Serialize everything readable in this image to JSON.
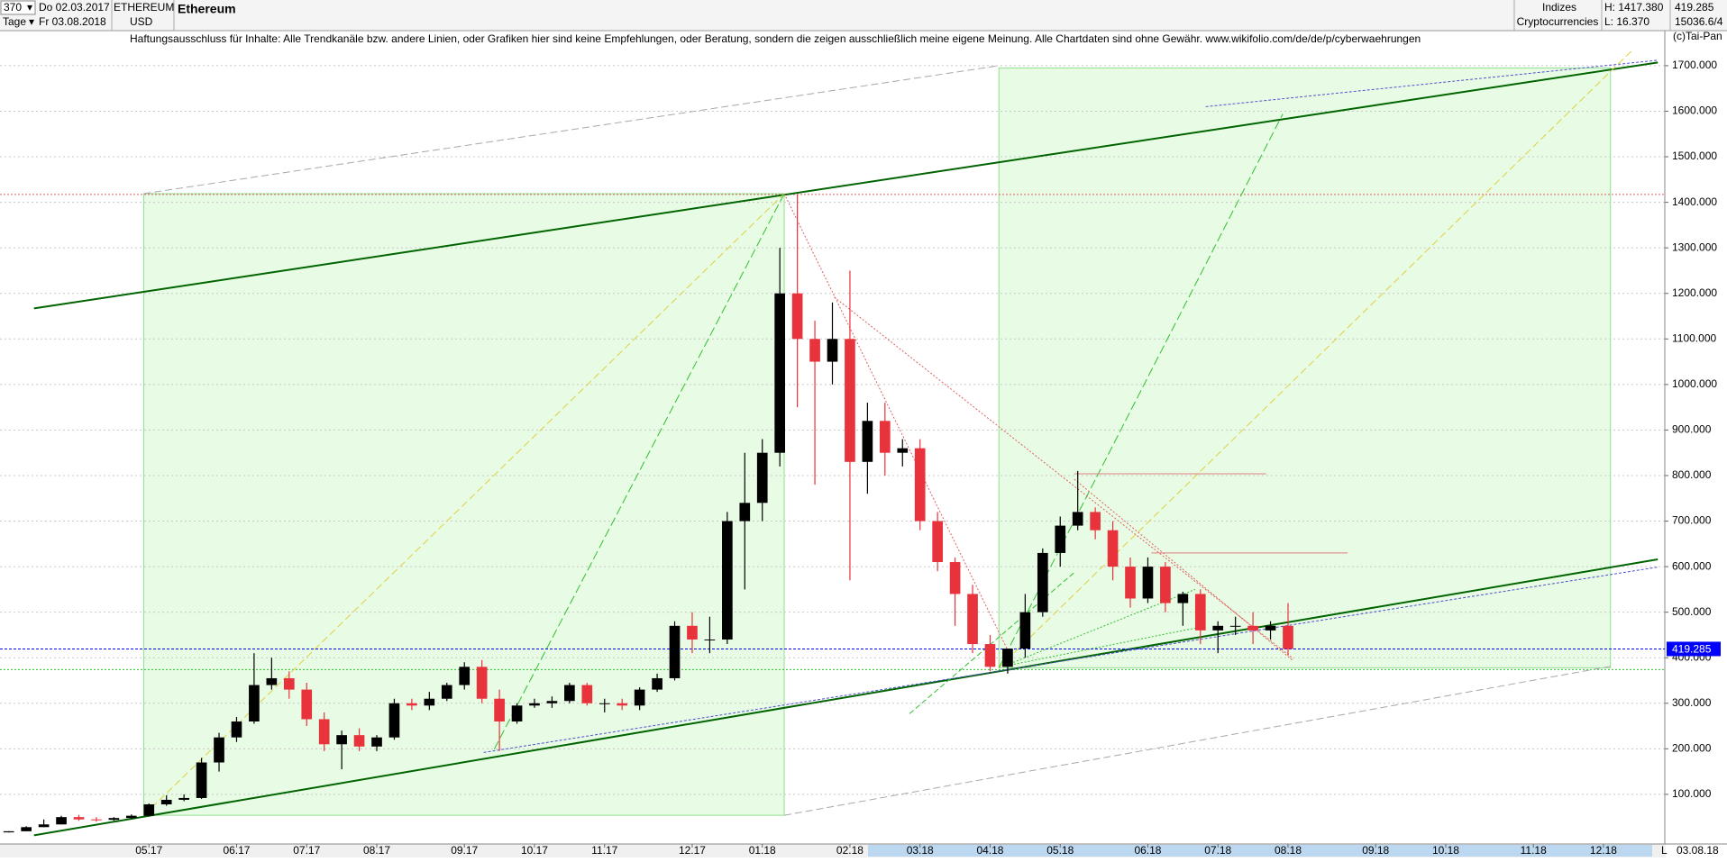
{
  "header": {
    "bars": "370",
    "period": "Tage",
    "start": "Do 02.03.2017",
    "end": "Fr 03.08.2018",
    "symbol": "ETHEREUM",
    "currency": "USD",
    "name": "Ethereum",
    "group": "Indizes",
    "subgroup": "Cryptocurrencies",
    "high": "H: 1417.380",
    "low": "L: 16.370",
    "code": "15036.6/4",
    "copyright": "(c)Tai-Pan",
    "disclaimer": "Haftungsausschluss für Inhalte: Alle Trendkanäle bzw. andere Linien, oder Grafiken hier sind keine Empfehlungen, oder Beratung, sondern die zeigen ausschließlich meine eigene Meinung. Alle Chartdaten sind ohne Gewähr.  www.wikifolio.com/de/de/p/cyberwaehrungen",
    "axis_flag": "L",
    "axis_date": "03.08.18"
  },
  "chart_data": {
    "type": "candlestick",
    "up_color": "#000000",
    "down_color": "#e8323c",
    "grid": true,
    "categories": [
      null,
      null,
      null,
      null,
      null,
      null,
      null,
      null,
      "05.17",
      null,
      null,
      null,
      null,
      "06.17",
      null,
      null,
      null,
      "07.17",
      null,
      null,
      null,
      "08.17",
      null,
      null,
      null,
      null,
      "09.17",
      null,
      null,
      null,
      "10.17",
      null,
      null,
      null,
      "11.17",
      null,
      null,
      null,
      null,
      "12.17",
      null,
      null,
      null,
      "01.18",
      null,
      null,
      null,
      null,
      "02.18",
      null,
      null,
      null,
      "03.18",
      null,
      null,
      null,
      "04.18",
      null,
      null,
      null,
      "05.18",
      null,
      null,
      null,
      null,
      "06.18",
      null,
      null,
      null,
      "07.18",
      null,
      null,
      null,
      "08.18",
      null,
      null,
      null,
      null,
      "09.18",
      null,
      null,
      null,
      "10.18",
      null,
      null,
      null,
      null,
      "11.18",
      null,
      null,
      null,
      "12.18",
      null,
      null,
      null
    ],
    "open": [
      16.5,
      19,
      28,
      34,
      50,
      45,
      44,
      48,
      53,
      78,
      88,
      92,
      170,
      225,
      260,
      340,
      355,
      330,
      265,
      210,
      230,
      205,
      225,
      300,
      295,
      310,
      340,
      380,
      310,
      260,
      295,
      300,
      305,
      340,
      300,
      300,
      295,
      330,
      355,
      470,
      440,
      440,
      700,
      740,
      850,
      1200,
      1100,
      1050,
      1100,
      830,
      920,
      850,
      860,
      700,
      610,
      540,
      430,
      380,
      420,
      500,
      630,
      690,
      720,
      680,
      600,
      530,
      600,
      520,
      540,
      460,
      470,
      470,
      460,
      470,
      null,
      null,
      null,
      null,
      null,
      null,
      null,
      null,
      null,
      null,
      null,
      null,
      null,
      null,
      null,
      null,
      null,
      null,
      null,
      null,
      null
    ],
    "high": [
      19,
      30,
      45,
      53,
      55,
      50,
      50,
      56,
      80,
      98,
      100,
      180,
      235,
      270,
      410,
      400,
      370,
      345,
      280,
      240,
      245,
      230,
      310,
      310,
      325,
      345,
      390,
      395,
      330,
      300,
      310,
      315,
      345,
      345,
      310,
      310,
      335,
      365,
      480,
      500,
      490,
      720,
      850,
      880,
      1300,
      1417.38,
      1140,
      1180,
      1250,
      960,
      960,
      880,
      880,
      720,
      620,
      560,
      450,
      420,
      540,
      640,
      710,
      810,
      730,
      700,
      620,
      620,
      610,
      545,
      550,
      480,
      490,
      500,
      480,
      520,
      null,
      null,
      null,
      null,
      null,
      null,
      null,
      null,
      null,
      null,
      null,
      null,
      null,
      null,
      null,
      null,
      null,
      null,
      null,
      null,
      null
    ],
    "low": [
      16.37,
      19,
      28,
      34,
      42,
      40,
      42,
      46,
      52,
      75,
      85,
      90,
      150,
      215,
      255,
      330,
      310,
      250,
      195,
      155,
      195,
      195,
      220,
      285,
      285,
      305,
      330,
      300,
      195,
      255,
      290,
      290,
      300,
      295,
      280,
      285,
      285,
      325,
      350,
      410,
      410,
      430,
      550,
      700,
      820,
      950,
      780,
      1000,
      570,
      760,
      800,
      820,
      680,
      590,
      470,
      410,
      370,
      365,
      400,
      490,
      600,
      680,
      660,
      570,
      510,
      520,
      500,
      470,
      430,
      410,
      450,
      430,
      440,
      405,
      null,
      null,
      null,
      null,
      null,
      null,
      null,
      null,
      null,
      null,
      null,
      null,
      null,
      null,
      null,
      null,
      null,
      null,
      null,
      null,
      null
    ],
    "close": [
      19,
      28,
      34,
      50,
      45,
      44,
      48,
      53,
      78,
      88,
      92,
      170,
      225,
      260,
      340,
      355,
      330,
      265,
      210,
      230,
      205,
      225,
      300,
      295,
      310,
      340,
      380,
      310,
      260,
      295,
      300,
      305,
      340,
      300,
      300,
      295,
      330,
      355,
      470,
      440,
      440,
      700,
      740,
      850,
      1200,
      1100,
      1050,
      1100,
      830,
      920,
      850,
      860,
      700,
      610,
      540,
      430,
      380,
      420,
      500,
      630,
      690,
      720,
      680,
      600,
      530,
      600,
      520,
      540,
      460,
      470,
      470,
      460,
      470,
      419.285,
      null,
      null,
      null,
      null,
      null,
      null,
      null,
      null,
      null,
      null,
      null,
      null,
      null,
      null,
      null,
      null,
      null,
      null,
      null,
      null,
      null
    ],
    "last_price": 419.285,
    "last_price_color": "#0000ff",
    "ylim": [
      -9,
      1777
    ],
    "yticks": [
      {
        "value": 100,
        "label": "100.000"
      },
      {
        "value": 200,
        "label": "200.000"
      },
      {
        "value": 300,
        "label": "300.000"
      },
      {
        "value": 400,
        "label": "400.000"
      },
      {
        "value": 500,
        "label": "500.000"
      },
      {
        "value": 600,
        "label": "600.000"
      },
      {
        "value": 700,
        "label": "700.000"
      },
      {
        "value": 800,
        "label": "800.000"
      },
      {
        "value": 900,
        "label": "900.000"
      },
      {
        "value": 1000,
        "label": "1000.000"
      },
      {
        "value": 1100,
        "label": "1100.000"
      },
      {
        "value": 1200,
        "label": "1200.000"
      },
      {
        "value": 1300,
        "label": "1300.000"
      },
      {
        "value": 1400,
        "label": "1400.000"
      },
      {
        "value": 1500,
        "label": "1500.000"
      },
      {
        "value": 1600,
        "label": "1600.000"
      },
      {
        "value": 1700,
        "label": "1700.000"
      }
    ],
    "zones": [
      {
        "x": [
          7.7,
          44.25
        ],
        "y": [
          54,
          1419
        ],
        "color": "#e8fbe4"
      },
      {
        "x": [
          56.5,
          91.4
        ],
        "y": [
          378,
          1695
        ],
        "color": "#e8fbe4"
      }
    ],
    "levels": [
      {
        "value": 1417.38,
        "color": "#e06060"
      },
      {
        "value": 374,
        "color": "#30c030"
      }
    ],
    "lines": [
      {
        "x": [
          1.44,
          94.1
        ],
        "y": [
          1167,
          1707
        ],
        "color": "#006400",
        "width": 2,
        "dash": "none"
      },
      {
        "x": [
          1.44,
          94.1
        ],
        "y": [
          10,
          616
        ],
        "color": "#006400",
        "width": 2,
        "dash": "none"
      },
      {
        "x": [
          27.1,
          94.1
        ],
        "y": [
          192,
          599
        ],
        "color": "#5050d0",
        "width": 1,
        "dash": "3,2"
      },
      {
        "x": [
          68.3,
          94.1
        ],
        "y": [
          1610,
          1712
        ],
        "color": "#5050d0",
        "width": 1,
        "dash": "3,2"
      },
      {
        "x": [
          7.7,
          56.5
        ],
        "y": [
          1419,
          1700
        ],
        "color": "#a8a8a8",
        "width": 1,
        "dash": "8,4"
      },
      {
        "x": [
          44.25,
          91.4
        ],
        "y": [
          54,
          381
        ],
        "color": "#a8a8a8",
        "width": 1,
        "dash": "8,4"
      },
      {
        "x": [
          7.7,
          44.25
        ],
        "y": [
          54,
          1419
        ],
        "color": "#e0d040",
        "width": 1,
        "dash": "8,4"
      },
      {
        "x": [
          56.5,
          92.7
        ],
        "y": [
          378,
          1736
        ],
        "color": "#e0d040",
        "width": 1,
        "dash": "8,4"
      },
      {
        "x": [
          27.7,
          44.25
        ],
        "y": [
          199,
          1419
        ],
        "color": "#30c030",
        "width": 1,
        "dash": "10,4"
      },
      {
        "x": [
          56.5,
          72.7
        ],
        "y": [
          378,
          1594
        ],
        "color": "#30c030",
        "width": 1,
        "dash": "10,4"
      },
      {
        "x": [
          51.4,
          60.8
        ],
        "y": [
          277,
          587
        ],
        "color": "#30c030",
        "width": 1,
        "dash": "6,3"
      },
      {
        "x": [
          56.75,
          67.7
        ],
        "y": [
          381,
          550
        ],
        "color": "#30c030",
        "width": 1,
        "dash": "2,2"
      },
      {
        "x": [
          56.75,
          67.7
        ],
        "y": [
          381,
          465
        ],
        "color": "#30c030",
        "width": 1,
        "dash": "2,2"
      },
      {
        "x": [
          44.25,
          57
        ],
        "y": [
          1419,
          417
        ],
        "color": "#e06060",
        "width": 1,
        "dash": "2,2"
      },
      {
        "x": [
          47.1,
          73.3
        ],
        "y": [
          1192,
          398
        ],
        "color": "#e06060",
        "width": 1,
        "dash": "2,2"
      },
      {
        "x": [
          60.8,
          73.3
        ],
        "y": [
          792,
          393
        ],
        "color": "#e06060",
        "width": 1,
        "dash": "2,2"
      },
      {
        "x": [
          60.8,
          71.75
        ],
        "y": [
          804,
          804
        ],
        "color": "#e08080",
        "width": 1,
        "dash": "none"
      },
      {
        "x": [
          65.2,
          76.4
        ],
        "y": [
          630,
          630
        ],
        "color": "#e08080",
        "width": 1,
        "dash": "none"
      }
    ]
  }
}
